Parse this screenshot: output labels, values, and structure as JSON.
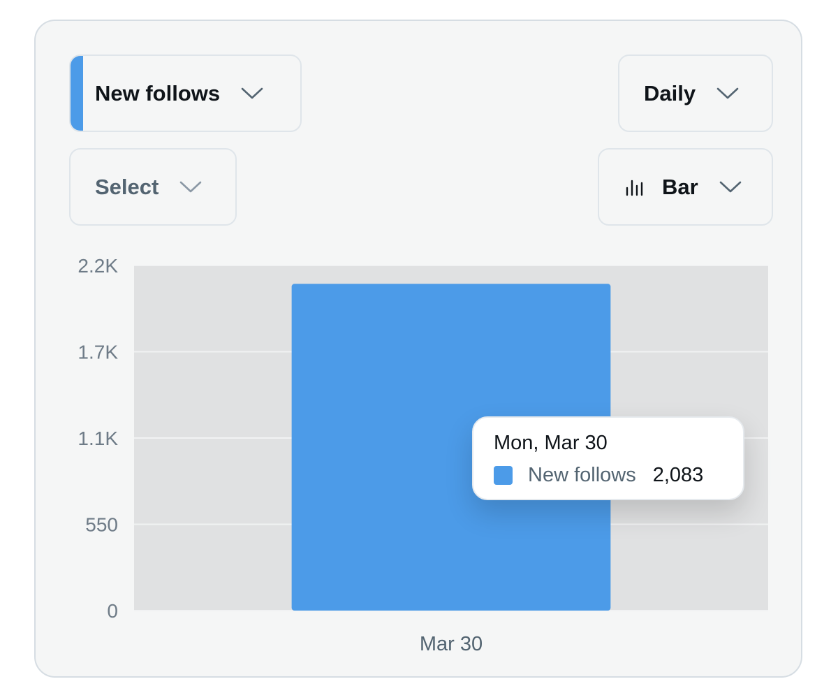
{
  "controls": {
    "metric": {
      "label": "New follows",
      "accent_color": "#4c9be8",
      "icon": "chevron-down-icon"
    },
    "interval": {
      "label": "Daily",
      "icon": "chevron-down-icon"
    },
    "compare": {
      "label": "Select",
      "icon": "chevron-down-icon"
    },
    "chart_type": {
      "label": "Bar",
      "icon": "bar-chart-icon"
    }
  },
  "tooltip": {
    "date": "Mon, Mar 30",
    "series": "New follows",
    "value": "2,083",
    "swatch_color": "#4c9be8"
  },
  "chart_data": {
    "type": "bar",
    "categories": [
      "Mar 30"
    ],
    "series": [
      {
        "name": "New follows",
        "values": [
          2083
        ],
        "color": "#4c9be8"
      }
    ],
    "y_ticks": [
      0,
      550,
      1100,
      1650,
      2200
    ],
    "y_tick_labels": [
      "0",
      "550",
      "1.1K",
      "1.7K",
      "2.2K"
    ],
    "ylim": [
      0,
      2200
    ],
    "grid": true,
    "plot_background": "#e0e1e2",
    "xlabel": "",
    "ylabel": ""
  }
}
